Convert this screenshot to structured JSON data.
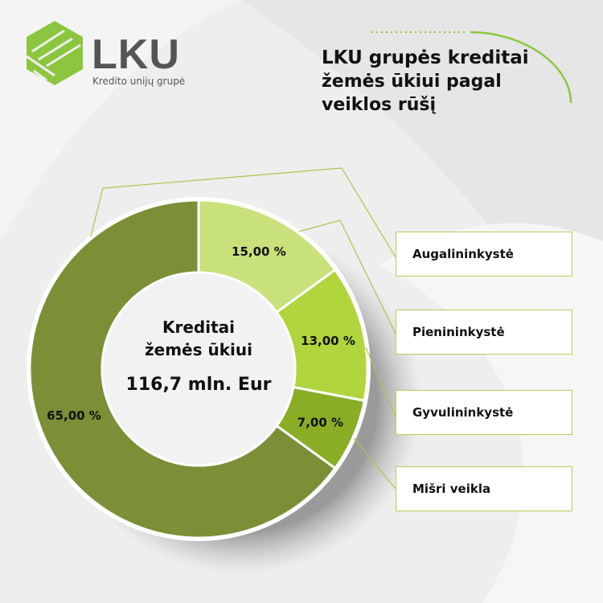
{
  "logo": {
    "name": "LKU",
    "subtitle": "Kredito unijų grupė",
    "color": "#8cc63f"
  },
  "title": {
    "line1": "LKU grupės kreditai",
    "line2": "žemės ūkiui pagal",
    "line3": "veiklos rūšį"
  },
  "chart_data": {
    "type": "donut",
    "center_label": {
      "line1": "Kreditai",
      "line2": "žemės ūkiui",
      "total": "116,7 mln. Eur"
    },
    "slices": [
      {
        "label": "Augalininkystė",
        "value": 15.0,
        "value_label": "15,00 %",
        "color": "#c8e17a"
      },
      {
        "label": "Pienininkystė",
        "value": 13.0,
        "value_label": "13,00 %",
        "color": "#b1d53c"
      },
      {
        "label": "Gyvulininkystė",
        "value": 7.0,
        "value_label": "7,00 %",
        "color": "#8aad26"
      },
      {
        "label": "Mišri veikla",
        "value": 65.0,
        "value_label": "65,00 %",
        "color": "#7b8f36"
      }
    ],
    "legend_order": [
      "Augalininkystė",
      "Pienininkystė",
      "Gyvulininkystė",
      "Mišri veikla"
    ],
    "leader_color": "#a8c64a"
  }
}
